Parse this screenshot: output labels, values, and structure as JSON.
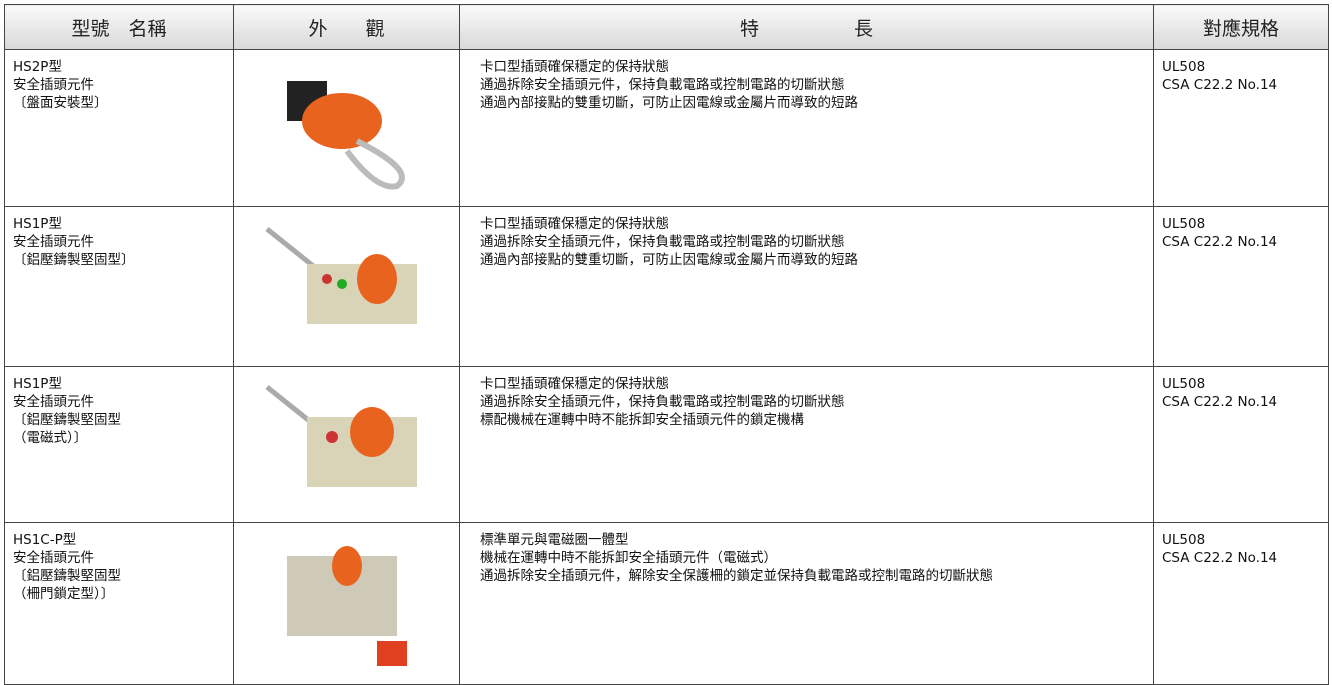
{
  "header": {
    "columns": [
      "型號　名稱",
      "外　　觀",
      "特　　　　　長",
      "對應規格"
    ]
  },
  "rows": [
    {
      "name": [
        "HS2P型",
        "安全插頭元件",
        "〔盤面安裝型〕"
      ],
      "features": [
        "卡口型插頭確保穩定的保持狀態",
        "通過拆除安全插頭元件，保持負載電路或控制電路的切斷狀態",
        "通過內部接點的雙重切斷，可防止因電線或金屬片而導致的短路"
      ],
      "standards": [
        "UL508",
        "CSA C22.2 No.14"
      ]
    },
    {
      "name": [
        "HS1P型",
        "安全插頭元件",
        "〔鋁壓鑄製堅固型〕"
      ],
      "features": [
        "卡口型插頭確保穩定的保持狀態",
        "通過拆除安全插頭元件，保持負載電路或控制電路的切斷狀態",
        "通過內部接點的雙重切斷，可防止因電線或金屬片而導致的短路"
      ],
      "standards": [
        "UL508",
        "CSA C22.2 No.14"
      ]
    },
    {
      "name": [
        "HS1P型",
        "安全插頭元件",
        "〔鋁壓鑄製堅固型",
        "（電磁式）〕"
      ],
      "features": [
        "卡口型插頭確保穩定的保持狀態",
        "通過拆除安全插頭元件，保持負載電路或控制電路的切斷狀態",
        "標配機械在運轉中時不能拆卸安全插頭元件的鎖定機構"
      ],
      "standards": [
        "UL508",
        "CSA C22.2 No.14"
      ]
    },
    {
      "name": [
        "HS1C-P型",
        "安全插頭元件",
        "〔鋁壓鑄製堅固型",
        "（柵門鎖定型）〕"
      ],
      "features": [
        "標準單元與電磁圈一體型",
        "機械在運轉中時不能拆卸安全插頭元件（電磁式）",
        "通過拆除安全插頭元件，解除安全保護柵的鎖定並保持負載電路或控制電路的切斷狀態"
      ],
      "standards": [
        "UL508",
        "CSA C22.2 No.14"
      ]
    }
  ]
}
